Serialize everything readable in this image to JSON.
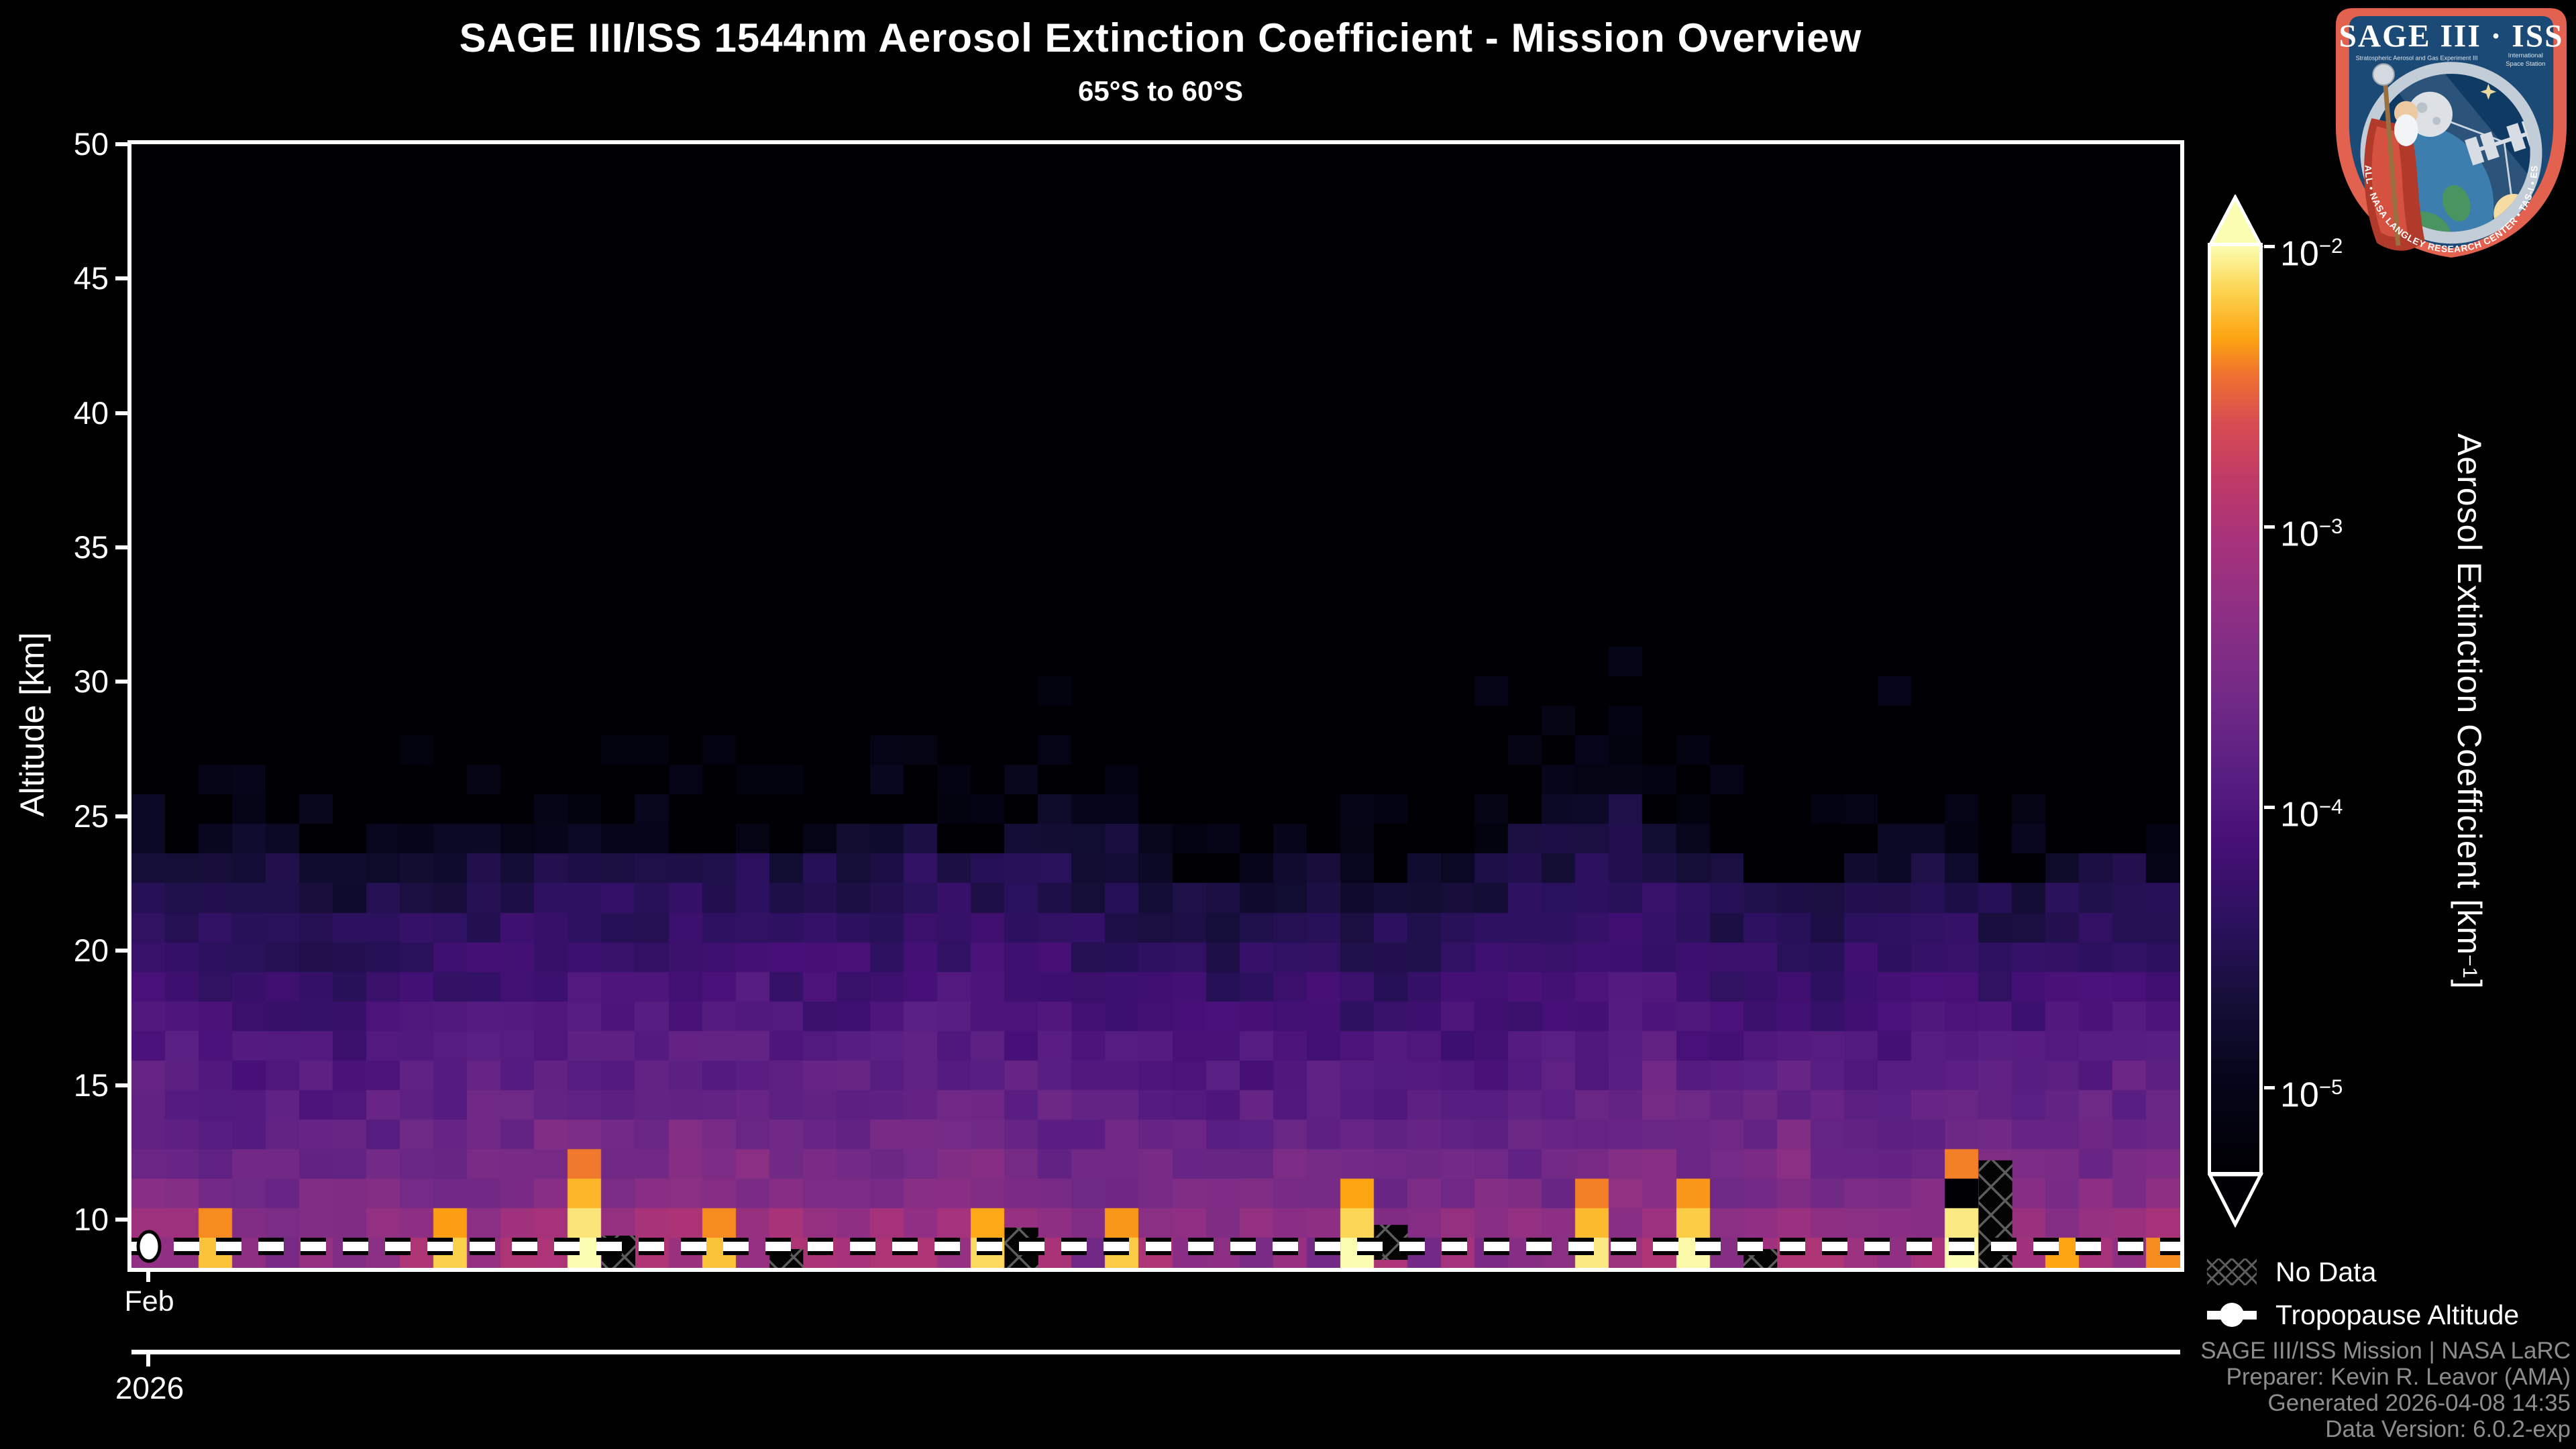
{
  "header": {
    "title": "SAGE III/ISS 1544nm Aerosol Extinction Coefficient - Mission Overview",
    "subtitle": "65°S to 60°S"
  },
  "axes": {
    "y_title": "Altitude [km]",
    "y_ticks": [
      50,
      45,
      40,
      35,
      30,
      25,
      20,
      15,
      10
    ],
    "x_month_label": "Feb",
    "x_year_label": "2026"
  },
  "colorbar": {
    "title_pre": "Aerosol Extinction Coefficient [km",
    "title_sup": "−1",
    "title_post": "]",
    "ticks": [
      {
        "base": "10",
        "exp": "−2"
      },
      {
        "base": "10",
        "exp": "−3"
      },
      {
        "base": "10",
        "exp": "−4"
      },
      {
        "base": "10",
        "exp": "−5"
      }
    ],
    "extend": "both"
  },
  "legend": {
    "no_data_label": "No Data",
    "tropopause_label": "Tropopause Altitude"
  },
  "credits": [
    "SAGE III/ISS Mission | NASA LaRC",
    "Preparer: Kevin R. Leavor (AMA)",
    "Generated 2026-04-08 14:35",
    "Data Version: 6.0.2-exp"
  ],
  "logo": {
    "top_text": "SAGE III · ISS",
    "left_sub": "Stratospheric Aerosol and Gas Experiment III",
    "right_sub_1": "International",
    "right_sub_2": "Space Station",
    "ring_text": "BALL • NASA LANGLEY RESEARCH CENTER • TAS-I • ESA",
    "border_color": "#e2614f",
    "field_color": "#1a4a75"
  },
  "chart_data": {
    "type": "heatmap",
    "title": "SAGE III/ISS 1544nm Aerosol Extinction Coefficient - Mission Overview",
    "latitude_band": "65°S to 60°S",
    "x_axis": {
      "start_month": "Feb",
      "year": "2026",
      "columns": 61
    },
    "y_axis": {
      "label": "Altitude [km]",
      "range_km": [
        8.2,
        50
      ],
      "tick_km": [
        10,
        15,
        20,
        25,
        30,
        35,
        40,
        45,
        50
      ]
    },
    "value_scale": {
      "type": "log",
      "units": "km^-1",
      "min": 1e-05,
      "max": 0.01,
      "tick_values": [
        0.01,
        0.001,
        0.0001,
        1e-05
      ]
    },
    "colormap_stops": [
      [
        0.0,
        "#000004"
      ],
      [
        0.1,
        "#06051a"
      ],
      [
        0.18,
        "#140e36"
      ],
      [
        0.27,
        "#2b115e"
      ],
      [
        0.36,
        "#471078"
      ],
      [
        0.44,
        "#5c2083"
      ],
      [
        0.52,
        "#742a86"
      ],
      [
        0.6,
        "#8c2f84"
      ],
      [
        0.68,
        "#a6327b"
      ],
      [
        0.75,
        "#c03a66"
      ],
      [
        0.81,
        "#d94d51"
      ],
      [
        0.86,
        "#ef7030"
      ],
      [
        0.9,
        "#fca311"
      ],
      [
        0.95,
        "#fbd24d"
      ],
      [
        1.0,
        "#fbfdb0"
      ]
    ],
    "tropopause_altitude_km": 9.0,
    "aerosol_top_mean_km": 23.8,
    "aerosol_top_spread_km": 1.8,
    "rows": 38,
    "seed": 20260408,
    "plume_columns": [
      {
        "col": 2,
        "top_km": 10.4
      },
      {
        "col": 9,
        "top_km": 10.7
      },
      {
        "col": 13,
        "top_km": 12.3
      },
      {
        "col": 17,
        "top_km": 10.4
      },
      {
        "col": 25,
        "top_km": 10.9
      },
      {
        "col": 29,
        "top_km": 10.6
      },
      {
        "col": 36,
        "top_km": 11.9
      },
      {
        "col": 43,
        "top_km": 11.3
      },
      {
        "col": 46,
        "top_km": 11.7
      },
      {
        "col": 54,
        "top_km": 12.4
      },
      {
        "col": 57,
        "top_km": 9.7
      },
      {
        "col": 60,
        "top_km": 9.3
      }
    ],
    "no_data_blocks": [
      {
        "col": 14,
        "top_km": 9.4,
        "bottom_km": 8.2
      },
      {
        "col": 19,
        "top_km": 8.9,
        "bottom_km": 8.2
      },
      {
        "col": 26,
        "top_km": 9.7,
        "bottom_km": 8.2
      },
      {
        "col": 37,
        "top_km": 9.8,
        "bottom_km": 8.5
      },
      {
        "col": 48,
        "top_km": 8.9,
        "bottom_km": 8.2
      },
      {
        "col": 55,
        "top_km": 12.2,
        "bottom_km": 8.2
      }
    ],
    "gap_cells": [
      {
        "col": 54,
        "km": 10.9
      }
    ]
  }
}
